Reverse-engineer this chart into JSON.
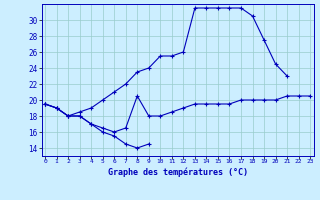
{
  "title": "Graphe des températures (°C)",
  "bg_color": "#cceeff",
  "line_color": "#0000bb",
  "grid_color": "#99cccc",
  "hours": [
    0,
    1,
    2,
    3,
    4,
    5,
    6,
    7,
    8,
    9,
    10,
    11,
    12,
    13,
    14,
    15,
    16,
    17,
    18,
    19,
    20,
    21,
    22,
    23
  ],
  "series1": [
    19.5,
    19.0,
    18.0,
    18.0,
    17.0,
    16.0,
    15.5,
    14.5,
    14.0,
    14.5,
    null,
    null,
    null,
    null,
    null,
    null,
    null,
    null,
    null,
    null,
    null,
    null,
    null,
    null
  ],
  "series2": [
    19.5,
    19.0,
    18.0,
    18.0,
    17.0,
    16.5,
    16.0,
    16.5,
    20.5,
    18.0,
    18.0,
    18.5,
    19.0,
    19.5,
    19.5,
    19.5,
    19.5,
    20.0,
    20.0,
    20.0,
    20.0,
    20.5,
    20.5,
    20.5
  ],
  "series3": [
    19.5,
    19.0,
    18.0,
    18.5,
    19.0,
    20.0,
    21.0,
    22.0,
    23.5,
    24.0,
    25.5,
    25.5,
    26.0,
    31.5,
    31.5,
    31.5,
    31.5,
    31.5,
    30.5,
    27.5,
    24.5,
    23.0,
    null,
    null
  ],
  "ylim": [
    13,
    32
  ],
  "yticks": [
    14,
    16,
    18,
    20,
    22,
    24,
    26,
    28,
    30
  ],
  "xlim": [
    -0.3,
    23.3
  ],
  "xtick_labels": [
    "0",
    "1",
    "2",
    "3",
    "4",
    "5",
    "6",
    "7",
    "8",
    "9",
    "10",
    "11",
    "12",
    "13",
    "14",
    "15",
    "16",
    "17",
    "18",
    "19",
    "20",
    "21",
    "22",
    "23"
  ]
}
